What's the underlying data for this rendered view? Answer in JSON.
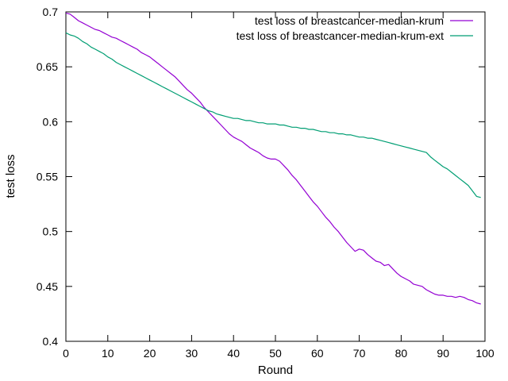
{
  "chart_data": {
    "type": "line",
    "title": "",
    "xlabel": "Round",
    "ylabel": "test loss",
    "xlim": [
      0,
      100
    ],
    "ylim": [
      0.4,
      0.7
    ],
    "xticks": [
      "0",
      "10",
      "20",
      "30",
      "40",
      "50",
      "60",
      "70",
      "80",
      "90",
      "100"
    ],
    "yticks": [
      "0.4",
      "0.45",
      "0.5",
      "0.55",
      "0.6",
      "0.65",
      "0.7"
    ],
    "grid": false,
    "legend_position": "top-right",
    "series": [
      {
        "name": "test loss of breastcancer-median-krum",
        "color": "#9400d3",
        "x": [
          0,
          1,
          2,
          3,
          4,
          5,
          6,
          7,
          8,
          9,
          10,
          11,
          12,
          13,
          14,
          15,
          16,
          17,
          18,
          19,
          20,
          21,
          22,
          23,
          24,
          25,
          26,
          27,
          28,
          29,
          30,
          31,
          32,
          33,
          34,
          35,
          36,
          37,
          38,
          39,
          40,
          41,
          42,
          43,
          44,
          45,
          46,
          47,
          48,
          49,
          50,
          51,
          52,
          53,
          54,
          55,
          56,
          57,
          58,
          59,
          60,
          61,
          62,
          63,
          64,
          65,
          66,
          67,
          68,
          69,
          70,
          71,
          72,
          73,
          74,
          75,
          76,
          77,
          78,
          79,
          80,
          81,
          82,
          83,
          84,
          85,
          86,
          87,
          88,
          89,
          90,
          91,
          92,
          93,
          94,
          95,
          96,
          97,
          98,
          99
        ],
        "y": [
          0.699,
          0.698,
          0.695,
          0.692,
          0.69,
          0.688,
          0.686,
          0.684,
          0.683,
          0.681,
          0.679,
          0.677,
          0.676,
          0.674,
          0.672,
          0.67,
          0.668,
          0.666,
          0.663,
          0.661,
          0.659,
          0.656,
          0.653,
          0.65,
          0.647,
          0.644,
          0.641,
          0.637,
          0.633,
          0.629,
          0.626,
          0.622,
          0.618,
          0.613,
          0.609,
          0.605,
          0.601,
          0.597,
          0.593,
          0.589,
          0.586,
          0.584,
          0.582,
          0.579,
          0.576,
          0.574,
          0.572,
          0.569,
          0.567,
          0.566,
          0.566,
          0.564,
          0.56,
          0.556,
          0.551,
          0.547,
          0.542,
          0.537,
          0.532,
          0.527,
          0.523,
          0.518,
          0.513,
          0.509,
          0.504,
          0.5,
          0.495,
          0.49,
          0.486,
          0.482,
          0.484,
          0.483,
          0.479,
          0.476,
          0.473,
          0.472,
          0.469,
          0.47,
          0.466,
          0.462,
          0.459,
          0.457,
          0.455,
          0.452,
          0.451,
          0.45,
          0.447,
          0.445,
          0.443,
          0.442,
          0.442,
          0.441,
          0.441,
          0.44,
          0.441,
          0.44,
          0.438,
          0.437,
          0.435,
          0.434
        ]
      },
      {
        "name": "test loss of breastcancer-median-krum-ext",
        "color": "#009e73",
        "x": [
          0,
          1,
          2,
          3,
          4,
          5,
          6,
          7,
          8,
          9,
          10,
          11,
          12,
          13,
          14,
          15,
          16,
          17,
          18,
          19,
          20,
          21,
          22,
          23,
          24,
          25,
          26,
          27,
          28,
          29,
          30,
          31,
          32,
          33,
          34,
          35,
          36,
          37,
          38,
          39,
          40,
          41,
          42,
          43,
          44,
          45,
          46,
          47,
          48,
          49,
          50,
          51,
          52,
          53,
          54,
          55,
          56,
          57,
          58,
          59,
          60,
          61,
          62,
          63,
          64,
          65,
          66,
          67,
          68,
          69,
          70,
          71,
          72,
          73,
          74,
          75,
          76,
          77,
          78,
          79,
          80,
          81,
          82,
          83,
          84,
          85,
          86,
          87,
          88,
          89,
          90,
          91,
          92,
          93,
          94,
          95,
          96,
          97,
          98,
          99
        ],
        "y": [
          0.681,
          0.679,
          0.678,
          0.676,
          0.673,
          0.671,
          0.668,
          0.666,
          0.664,
          0.662,
          0.659,
          0.657,
          0.654,
          0.652,
          0.65,
          0.648,
          0.646,
          0.644,
          0.642,
          0.64,
          0.638,
          0.636,
          0.634,
          0.632,
          0.63,
          0.628,
          0.626,
          0.624,
          0.622,
          0.62,
          0.618,
          0.616,
          0.614,
          0.612,
          0.61,
          0.609,
          0.607,
          0.606,
          0.605,
          0.604,
          0.603,
          0.603,
          0.602,
          0.601,
          0.601,
          0.6,
          0.599,
          0.599,
          0.598,
          0.598,
          0.598,
          0.597,
          0.597,
          0.596,
          0.595,
          0.595,
          0.594,
          0.594,
          0.593,
          0.593,
          0.592,
          0.591,
          0.591,
          0.59,
          0.59,
          0.589,
          0.589,
          0.588,
          0.588,
          0.587,
          0.586,
          0.586,
          0.585,
          0.585,
          0.584,
          0.583,
          0.582,
          0.581,
          0.58,
          0.579,
          0.578,
          0.577,
          0.576,
          0.575,
          0.574,
          0.573,
          0.572,
          0.568,
          0.565,
          0.562,
          0.559,
          0.557,
          0.554,
          0.551,
          0.548,
          0.545,
          0.542,
          0.537,
          0.532,
          0.531
        ]
      }
    ]
  }
}
